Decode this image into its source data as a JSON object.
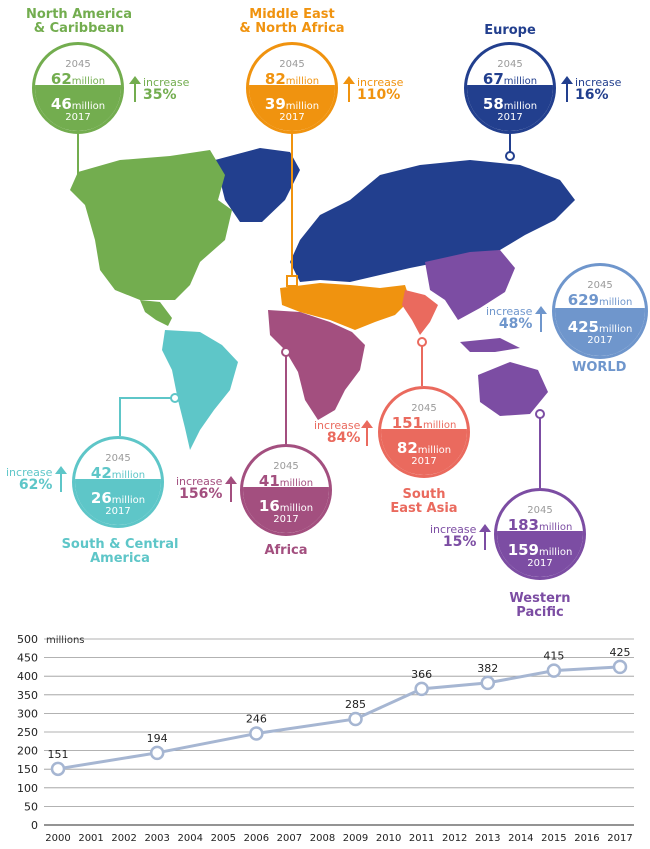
{
  "colors": {
    "north_america": "#73ad4f",
    "middle_east": "#f0930f",
    "europe": "#223f8e",
    "world": "#6f96cc",
    "south_america": "#5ec6c8",
    "africa": "#a34f7f",
    "south_east_asia": "#ea6a5e",
    "western_pacific": "#7c4da3",
    "chart_line": "#a6b6d2"
  },
  "regions": {
    "north_america": {
      "name_line1": "North America",
      "name_line2": "& Caribbean",
      "y2045": "2045",
      "v2045": "62",
      "v2017": "46",
      "y2017": "2017",
      "unit": "million",
      "inc_label": "increase",
      "inc_pct": "35%"
    },
    "middle_east": {
      "name_line1": "Middle East",
      "name_line2": "& North Africa",
      "y2045": "2045",
      "v2045": "82",
      "v2017": "39",
      "y2017": "2017",
      "unit": "million",
      "inc_label": "increase",
      "inc_pct": "110%"
    },
    "europe": {
      "name_line1": "Europe",
      "y2045": "2045",
      "v2045": "67",
      "v2017": "58",
      "y2017": "2017",
      "unit": "million",
      "inc_label": "increase",
      "inc_pct": "16%"
    },
    "world": {
      "name_line1": "WORLD",
      "y2045": "2045",
      "v2045": "629",
      "v2017": "425",
      "y2017": "2017",
      "unit": "million",
      "inc_label": "increase",
      "inc_pct": "48%"
    },
    "south_america": {
      "name_line1": "South & Central",
      "name_line2": "America",
      "y2045": "2045",
      "v2045": "42",
      "v2017": "26",
      "y2017": "2017",
      "unit": "million",
      "inc_label": "increase",
      "inc_pct": "62%"
    },
    "africa": {
      "name_line1": "Africa",
      "y2045": "2045",
      "v2045": "41",
      "v2017": "16",
      "y2017": "2017",
      "unit": "million",
      "inc_label": "increase",
      "inc_pct": "156%"
    },
    "south_east_asia": {
      "name_line1": "South",
      "name_line2": "East Asia",
      "y2045": "2045",
      "v2045": "151",
      "v2017": "82",
      "y2017": "2017",
      "unit": "million",
      "inc_label": "increase",
      "inc_pct": "84%"
    },
    "western_pacific": {
      "name_line1": "Western",
      "name_line2": "Pacific",
      "y2045": "2045",
      "v2045": "183",
      "v2017": "159",
      "y2017": "2017",
      "unit": "million",
      "inc_label": "increase",
      "inc_pct": "15%"
    }
  },
  "chart_data": {
    "type": "line",
    "ylabel": "millions",
    "ylim": [
      0,
      500
    ],
    "yticks": [
      0,
      50,
      100,
      150,
      200,
      250,
      300,
      350,
      400,
      450,
      500
    ],
    "categories": [
      "2000",
      "2001",
      "2002",
      "2003",
      "2004",
      "2005",
      "2006",
      "2007",
      "2008",
      "2009",
      "2010",
      "2011",
      "2012",
      "2013",
      "2014",
      "2015",
      "2016",
      "2017"
    ],
    "grid": true,
    "series": [
      {
        "points": [
          {
            "x": "2000",
            "y": 151
          },
          {
            "x": "2003",
            "y": 194
          },
          {
            "x": "2006",
            "y": 246
          },
          {
            "x": "2009",
            "y": 285
          },
          {
            "x": "2011",
            "y": 366
          },
          {
            "x": "2013",
            "y": 382
          },
          {
            "x": "2015",
            "y": 415
          },
          {
            "x": "2017",
            "y": 425
          }
        ]
      }
    ]
  }
}
